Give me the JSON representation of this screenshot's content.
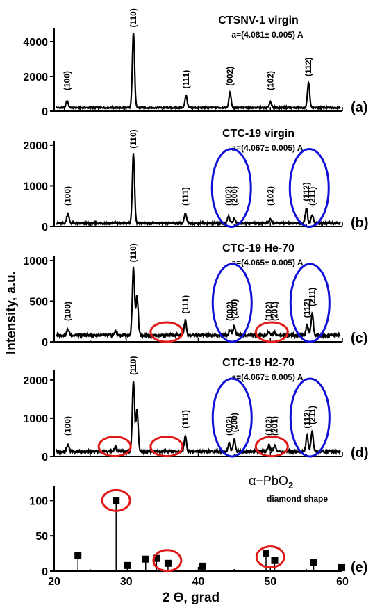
{
  "figure": {
    "ylabel": "Intensity, a.u.",
    "xlabel": "2 Θ, grad"
  },
  "chart_data": [
    {
      "type": "line",
      "panel": "(a)",
      "title": "CTSNV-1 virgin",
      "lattice": "a=(4.081± 0.005) A",
      "xlim": [
        20,
        60
      ],
      "ylim": [
        0,
        4800
      ],
      "yticks": [
        "0",
        "2000",
        "4000"
      ],
      "yticks_values": [
        0,
        2000,
        4000
      ],
      "baseline": 200,
      "noise": 40,
      "peaks": [
        {
          "x": 21.8,
          "y": 600,
          "label": "(100)"
        },
        {
          "x": 31.0,
          "y": 4500,
          "label": "(110)"
        },
        {
          "x": 38.3,
          "y": 900,
          "label": "(111)"
        },
        {
          "x": 44.4,
          "y": 1050,
          "label": "(002)"
        },
        {
          "x": 50.0,
          "y": 550,
          "label": "(102)"
        },
        {
          "x": 55.3,
          "y": 1600,
          "label": "(112)"
        }
      ],
      "circles": []
    },
    {
      "type": "line",
      "panel": "(b)",
      "title": "CTC-19 virgin",
      "lattice": "a=(4.067± 0.005) A",
      "xlim": [
        20,
        60
      ],
      "ylim": [
        0,
        2100
      ],
      "yticks": [
        "0",
        "1000",
        "2000"
      ],
      "yticks_values": [
        0,
        1000,
        2000
      ],
      "baseline": 80,
      "noise": 25,
      "peaks": [
        {
          "x": 21.9,
          "y": 320,
          "label": "(100)"
        },
        {
          "x": 31.0,
          "y": 1780,
          "label": "(110)"
        },
        {
          "x": 38.2,
          "y": 320,
          "label": "(111)"
        },
        {
          "x": 44.2,
          "y": 250,
          "label": "(002)"
        },
        {
          "x": 45.0,
          "y": 200,
          "label": "(200)"
        },
        {
          "x": 50.0,
          "y": 180,
          "label": "(102)"
        },
        {
          "x": 55.0,
          "y": 450,
          "label": "(112)"
        },
        {
          "x": 55.8,
          "y": 280,
          "label": "(211)"
        }
      ],
      "circles": [
        {
          "x": 44.6,
          "y": 780,
          "color": "blue"
        },
        {
          "x": 55.4,
          "y": 780,
          "color": "blue"
        }
      ]
    },
    {
      "type": "line",
      "panel": "(c)",
      "title": "CTC-19  He-70",
      "lattice": "a=(4.065± 0.005) A",
      "xlim": [
        20,
        60
      ],
      "ylim": [
        0,
        1060
      ],
      "yticks": [
        "0",
        "500",
        "1000"
      ],
      "yticks_values": [
        0,
        500,
        1000
      ],
      "baseline": 80,
      "noise": 18,
      "peaks": [
        {
          "x": 21.9,
          "y": 150,
          "label": "(100)"
        },
        {
          "x": 28.5,
          "y": 130,
          "label": ""
        },
        {
          "x": 31.0,
          "y": 910,
          "label": "(110)"
        },
        {
          "x": 31.5,
          "y": 560,
          "label": ""
        },
        {
          "x": 38.2,
          "y": 260,
          "label": "(111)"
        },
        {
          "x": 44.4,
          "y": 150,
          "label": "(002)"
        },
        {
          "x": 45.0,
          "y": 200,
          "label": "(200)"
        },
        {
          "x": 49.8,
          "y": 120,
          "label": "(102)"
        },
        {
          "x": 50.6,
          "y": 110,
          "label": "(201)"
        },
        {
          "x": 55.1,
          "y": 210,
          "label": "(112)"
        },
        {
          "x": 55.8,
          "y": 350,
          "label": "(211)"
        }
      ],
      "circles": [
        {
          "x": 44.7,
          "y": 400,
          "color": "blue"
        },
        {
          "x": 55.5,
          "y": 400,
          "color": "blue"
        },
        {
          "x": 35.6,
          "y": 120,
          "color": "red"
        },
        {
          "x": 50.2,
          "y": 120,
          "color": "red"
        }
      ]
    },
    {
      "type": "line",
      "panel": "(d)",
      "title": "CTC-19  H2-70",
      "lattice": "a=(4.067± 0.005) A",
      "xlim": [
        20,
        60
      ],
      "ylim": [
        0,
        2250
      ],
      "yticks": [
        "0",
        "1000",
        "2000"
      ],
      "yticks_values": [
        0,
        1000,
        2000
      ],
      "baseline": 130,
      "noise": 35,
      "peaks": [
        {
          "x": 21.9,
          "y": 300,
          "label": "(100)"
        },
        {
          "x": 28.5,
          "y": 250,
          "label": ""
        },
        {
          "x": 31.0,
          "y": 1980,
          "label": "(110)"
        },
        {
          "x": 31.5,
          "y": 1200,
          "label": ""
        },
        {
          "x": 38.2,
          "y": 550,
          "label": "(111)"
        },
        {
          "x": 44.3,
          "y": 350,
          "label": "(002)"
        },
        {
          "x": 45.0,
          "y": 450,
          "label": "(200)"
        },
        {
          "x": 49.8,
          "y": 300,
          "label": "(102)"
        },
        {
          "x": 50.6,
          "y": 280,
          "label": "(201)"
        },
        {
          "x": 55.1,
          "y": 550,
          "label": "(112)"
        },
        {
          "x": 55.8,
          "y": 650,
          "label": "(211)"
        }
      ],
      "circles": [
        {
          "x": 44.7,
          "y": 850,
          "color": "blue"
        },
        {
          "x": 55.5,
          "y": 850,
          "color": "blue"
        },
        {
          "x": 28.4,
          "y": 260,
          "color": "red"
        },
        {
          "x": 35.6,
          "y": 260,
          "color": "red"
        },
        {
          "x": 50.2,
          "y": 260,
          "color": "red"
        }
      ]
    },
    {
      "type": "scatter",
      "panel": "(e)",
      "title": "α−PbO",
      "title_sub": "2",
      "subtitle": "diamond shape",
      "xlim": [
        20,
        60
      ],
      "ylim": [
        0,
        120
      ],
      "xticks": [
        "20",
        "30",
        "40",
        "50",
        "60"
      ],
      "xticks_values": [
        20,
        30,
        40,
        50,
        60
      ],
      "yticks": [
        "0",
        "50",
        "100"
      ],
      "yticks_values": [
        0,
        50,
        100
      ],
      "points": [
        {
          "x": 23.3,
          "y": 22
        },
        {
          "x": 28.6,
          "y": 100
        },
        {
          "x": 30.2,
          "y": 8
        },
        {
          "x": 32.7,
          "y": 17
        },
        {
          "x": 34.2,
          "y": 18
        },
        {
          "x": 35.8,
          "y": 11
        },
        {
          "x": 40.6,
          "y": 7
        },
        {
          "x": 49.4,
          "y": 25
        },
        {
          "x": 50.6,
          "y": 15
        },
        {
          "x": 56.0,
          "y": 12
        },
        {
          "x": 59.9,
          "y": 5
        }
      ],
      "circles": [
        {
          "x": 28.6,
          "y": 100,
          "color": "red"
        },
        {
          "x": 35.7,
          "y": 15,
          "color": "red"
        },
        {
          "x": 50.0,
          "y": 20,
          "color": "red"
        }
      ]
    }
  ],
  "colors": {
    "line": "#000000",
    "blue": "#1010d8",
    "red": "#e01818"
  }
}
